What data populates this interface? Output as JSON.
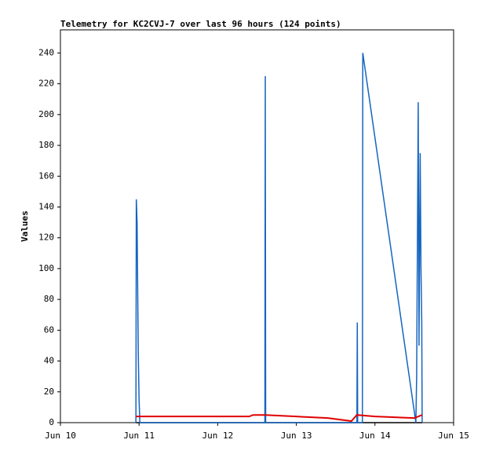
{
  "chart_data": {
    "type": "line",
    "title": "Telemetry for KC2CVJ-7 over last 96 hours (124 points)",
    "y_label": "Values",
    "xlim": [
      10,
      15
    ],
    "xticks": [
      {
        "value": 10,
        "label": "Jun 10"
      },
      {
        "value": 11,
        "label": "Jun 11"
      },
      {
        "value": 12,
        "label": "Jun 12"
      },
      {
        "value": 13,
        "label": "Jun 13"
      },
      {
        "value": 14,
        "label": "Jun 14"
      },
      {
        "value": 15,
        "label": "Jun 15"
      }
    ],
    "ylim": [
      0,
      255
    ],
    "yticks": [
      0,
      20,
      40,
      60,
      80,
      100,
      120,
      140,
      160,
      180,
      200,
      220,
      240
    ],
    "series": [
      {
        "color": "#000000",
        "x": [
          10.96,
          14.6
        ],
        "values": [
          0,
          0
        ]
      },
      {
        "color": "#1565c0",
        "x": [
          10.96,
          10.965,
          10.975,
          10.98,
          10.99,
          11.0,
          11.01,
          12.6,
          12.605,
          12.61,
          13.77,
          13.775,
          13.78,
          13.84,
          13.845,
          14.52,
          14.53,
          14.55,
          14.56,
          14.575,
          14.585,
          14.595,
          14.6
        ],
        "values": [
          0,
          145,
          130,
          100,
          45,
          15,
          0,
          0,
          225,
          0,
          0,
          65,
          0,
          0,
          240,
          0,
          30,
          208,
          50,
          175,
          100,
          65,
          0
        ]
      },
      {
        "color": "#e00000",
        "x": [
          10.96,
          12.4,
          12.45,
          12.6,
          13.0,
          13.4,
          13.7,
          13.77,
          14.0,
          14.5,
          14.6
        ],
        "values": [
          4,
          4,
          5,
          5,
          4,
          3,
          1,
          5,
          4,
          3,
          5
        ]
      }
    ]
  }
}
